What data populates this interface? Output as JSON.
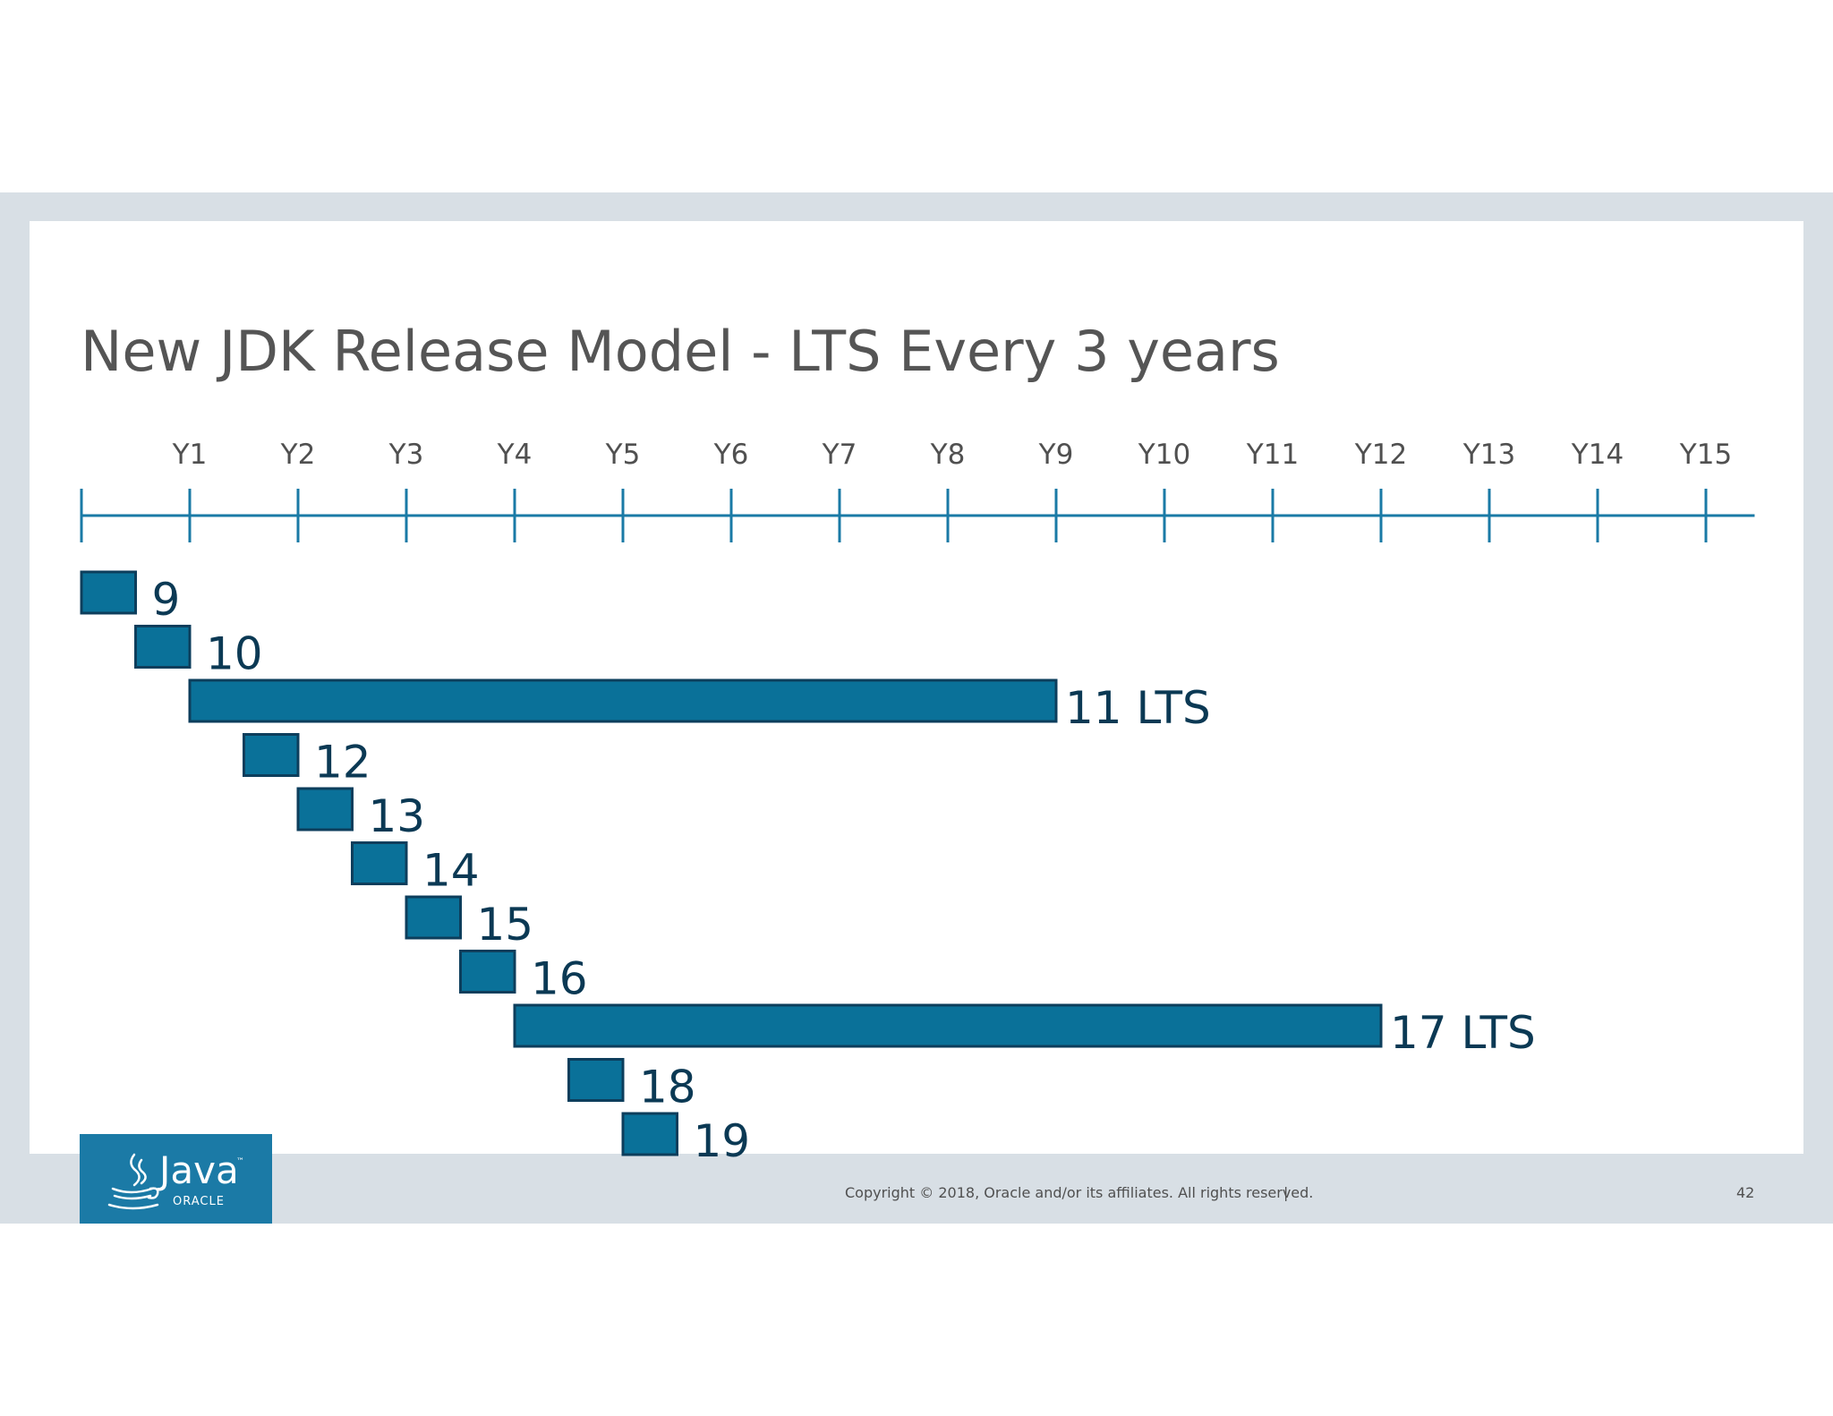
{
  "slide": {
    "copyright": "Copyright © 2018, Oracle and/or its affiliates. All rights reserved.",
    "separator": "|",
    "page_number": "42"
  },
  "logo": {
    "word": "Java",
    "trademark": "™",
    "sub": "ORACLE",
    "icon": "java-coffee-cup-icon"
  },
  "colors": {
    "bar_fill": "#0a7199",
    "bar_stroke": "#0d3e5c",
    "axis": "#1a7aa6",
    "label": "#0b3954",
    "logo_bg": "#1b7aa6"
  },
  "chart_data": {
    "type": "gantt",
    "title": "New JDK Release Model - LTS Every 3 years",
    "x_ticks": [
      "Y1",
      "Y2",
      "Y3",
      "Y4",
      "Y5",
      "Y6",
      "Y7",
      "Y8",
      "Y9",
      "Y10",
      "Y11",
      "Y12",
      "Y13",
      "Y14",
      "Y15"
    ],
    "x_range": [
      0,
      15.45
    ],
    "unit": "years",
    "series": [
      {
        "label": "9",
        "start": 0,
        "end": 0.5
      },
      {
        "label": "10",
        "start": 0.5,
        "end": 1.0
      },
      {
        "label": "11 LTS",
        "start": 1.0,
        "end": 9.0
      },
      {
        "label": "12",
        "start": 1.5,
        "end": 2.0
      },
      {
        "label": "13",
        "start": 2.0,
        "end": 2.5
      },
      {
        "label": "14",
        "start": 2.5,
        "end": 3.0
      },
      {
        "label": "15",
        "start": 3.0,
        "end": 3.5
      },
      {
        "label": "16",
        "start": 3.5,
        "end": 4.0
      },
      {
        "label": "17 LTS",
        "start": 4.0,
        "end": 12.0
      },
      {
        "label": "18",
        "start": 4.5,
        "end": 5.0
      },
      {
        "label": "19",
        "start": 5.0,
        "end": 5.5
      }
    ]
  }
}
